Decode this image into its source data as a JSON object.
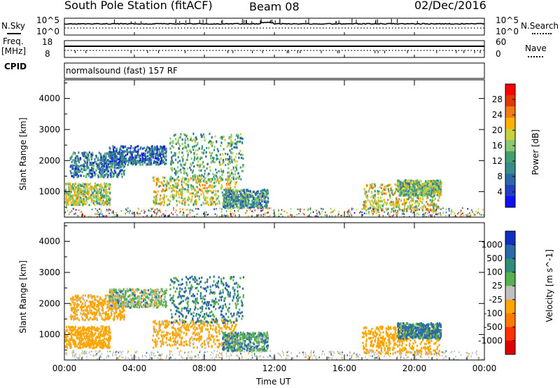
{
  "header": {
    "station": "South Pole Station (fitACF)",
    "beam": "Beam 08",
    "date": "02/Dec/2016"
  },
  "strips": {
    "nsky_label": "N.Sky",
    "nsearch_label": "N.Search",
    "noise_ticks_left": [
      "10^5",
      "10^0"
    ],
    "noise_ticks_right": [
      "10^5",
      "10^0"
    ],
    "freq_label_line1": "Freq.",
    "freq_label_line2": "[MHz]",
    "freq_ticks": [
      "18",
      "8"
    ],
    "nave_label": "Nave",
    "nave_ticks": [
      "60",
      "0"
    ],
    "cpid_label": "CPID",
    "cpid_text": "normalsound (fast) 157 RF"
  },
  "panels": {
    "power_ylabel": "Slant Range [km]",
    "velocity_ylabel": "Slant Range [km]",
    "y_ticks": [
      "4000",
      "3000",
      "2000",
      "1000"
    ],
    "x_ticks": [
      "00:00",
      "04:00",
      "08:00",
      "12:00",
      "16:00",
      "20:00",
      "00:00"
    ],
    "x_label": "Time UT"
  },
  "colorbars": {
    "power": {
      "label": "Power [dB]",
      "ticks": [
        "28",
        "24",
        "20",
        "16",
        "12",
        "8",
        "4"
      ],
      "colors": [
        "#ff0000",
        "#e03a00",
        "#f07a1a",
        "#ffb000",
        "#c8d040",
        "#88c870",
        "#40a070",
        "#3a8c8c",
        "#2a68a8",
        "#2040c0",
        "#1010f0"
      ]
    },
    "velocity": {
      "label": "Velocity [m s^-1]",
      "ticks": [
        "1000",
        "500",
        "100",
        "25",
        "-25",
        "-100",
        "-500",
        "-1000"
      ],
      "colors": [
        "#1030c0",
        "#2a6aa8",
        "#2e8c78",
        "#56b050",
        "#bfbfbf",
        "#ffa500",
        "#ff7a00",
        "#ff3000",
        "#e00000"
      ]
    }
  },
  "chart_data": {
    "type": "heatmap",
    "title": "South Pole Station (fitACF)",
    "xlabel": "Time UT",
    "ylabel": "Slant Range [km]",
    "x_range_hours": [
      0,
      24
    ],
    "y_range_km": [
      180,
      4600
    ],
    "power_scale_db": [
      0,
      30
    ],
    "velocity_scale_ms": [
      -1000,
      1000
    ],
    "echo_regions": [
      {
        "t": [
          0.0,
          2.6
        ],
        "r": [
          600,
          1300
        ],
        "power_db": 16,
        "velocity_ms": -300
      },
      {
        "t": [
          0.3,
          3.4
        ],
        "r": [
          1500,
          2300
        ],
        "power_db": 8,
        "velocity_ms": -200
      },
      {
        "t": [
          2.5,
          5.8
        ],
        "r": [
          1900,
          2500
        ],
        "power_db": 6,
        "velocity_ms": 0
      },
      {
        "t": [
          5.0,
          9.8
        ],
        "r": [
          600,
          1500
        ],
        "power_db": 18,
        "velocity_ms": -200
      },
      {
        "t": [
          6.0,
          10.2
        ],
        "r": [
          1400,
          2900
        ],
        "power_db": 12,
        "velocity_ms": 120
      },
      {
        "t": [
          9.0,
          11.6
        ],
        "r": [
          500,
          1100
        ],
        "power_db": 10,
        "velocity_ms": 60
      },
      {
        "t": [
          17.0,
          21.4
        ],
        "r": [
          400,
          1300
        ],
        "power_db": 18,
        "velocity_ms": -300
      },
      {
        "t": [
          19.0,
          21.5
        ],
        "r": [
          900,
          1400
        ],
        "power_db": 14,
        "velocity_ms": 150
      }
    ],
    "noise_sky": 1000,
    "nave": 30,
    "freq_mhz": 12
  }
}
